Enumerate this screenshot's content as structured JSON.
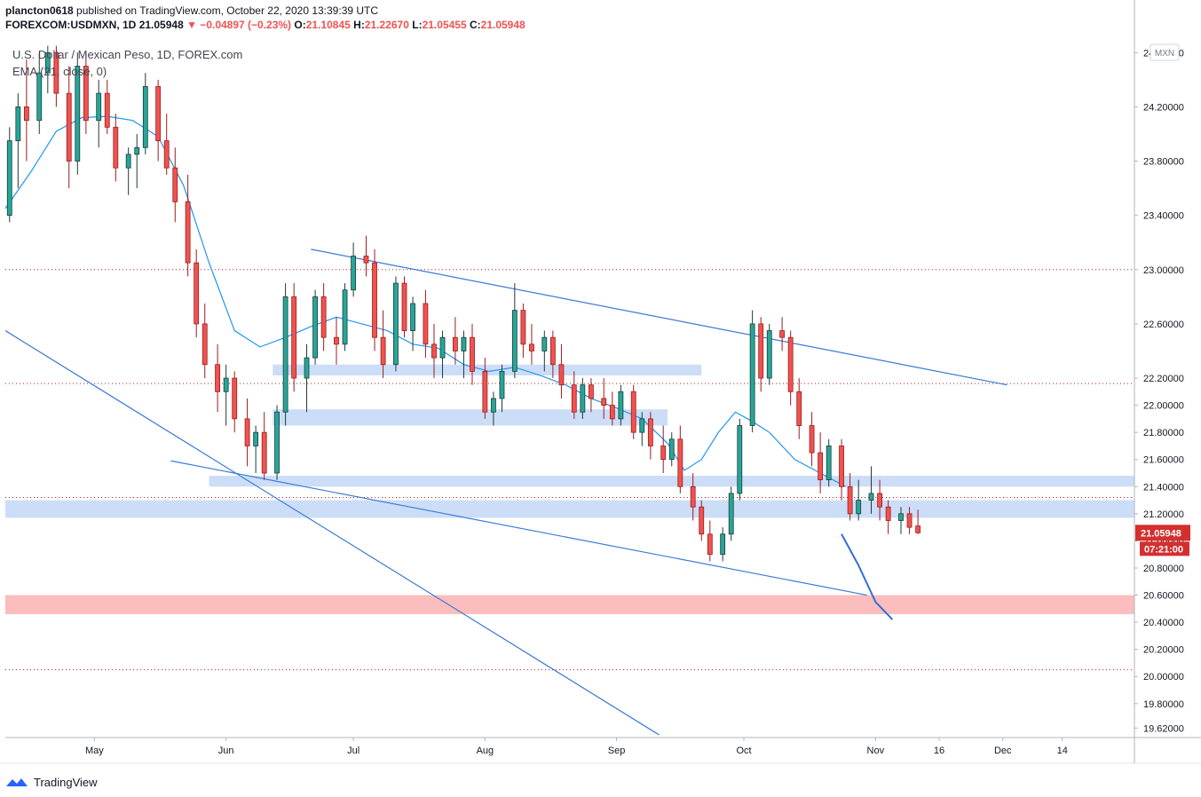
{
  "header": {
    "publisher": "plancton0618",
    "published_text": "published on TradingView.com, October 22, 2020 13:39:39 UTC",
    "symbol": "FOREXCOM:USDMXN, 1D",
    "last": "21.05948",
    "change": "▼ −0.04897 (−0.23%)",
    "o_label": "O:",
    "o": "21.10845",
    "h_label": "H:",
    "h": "21.22670",
    "l_label": "L:",
    "l": "21.05455",
    "c_label": "C:",
    "c": "21.05948"
  },
  "legend": {
    "title": "U.S. Dollar / Mexican Peso, 1D, FOREX.com",
    "indicator": "EMA (21, close, 0)"
  },
  "currency_badge": "MXN",
  "price_tag": {
    "price": "21.05948",
    "countdown": "07:21:00"
  },
  "footer": {
    "brand": "TradingView"
  },
  "colors": {
    "up": "#26a69a",
    "down": "#ef5350",
    "body_up": "#1f3b34",
    "body_down": "#9c1c1c",
    "ema": "#2196f3",
    "trendline": "#3a7bd5",
    "zone_blue": "#c6d9f7",
    "zone_red": "#fbb6b6",
    "grid_dotted": "#b22222",
    "axis_text": "#131722",
    "tag": "#d32f2f"
  },
  "chart_data": {
    "type": "candlestick",
    "title": "U.S. Dollar / Mexican Peso, 1D, FOREX.com",
    "xlabel": "",
    "ylabel": "",
    "y_ticks": [
      "19.62000",
      "19.80000",
      "20.00000",
      "20.20000",
      "20.40000",
      "20.60000",
      "20.80000",
      "21.00000",
      "21.20000",
      "21.40000",
      "21.60000",
      "21.80000",
      "22.00000",
      "22.20000",
      "22.60000",
      "23.00000",
      "23.40000",
      "23.80000",
      "24.20000",
      "24.60000"
    ],
    "y_tick_values": [
      19.62,
      19.8,
      20.0,
      20.2,
      20.4,
      20.6,
      20.8,
      21.0,
      21.2,
      21.4,
      21.6,
      21.8,
      22.0,
      22.2,
      22.6,
      23.0,
      23.4,
      23.8,
      24.2,
      24.6
    ],
    "ylim": [
      19.55,
      24.7
    ],
    "x_ticks": [
      {
        "label": "May",
        "day": 21
      },
      {
        "label": "Jun",
        "day": 52
      },
      {
        "label": "Jul",
        "day": 82
      },
      {
        "label": "Aug",
        "day": 113
      },
      {
        "label": "Sep",
        "day": 144
      },
      {
        "label": "Oct",
        "day": 174
      },
      {
        "label": "Nov",
        "day": 205
      },
      {
        "label": "16",
        "day": 220
      },
      {
        "label": "Dec",
        "day": 235
      },
      {
        "label": "14",
        "day": 249
      }
    ],
    "xlim": [
      0,
      266
    ],
    "reference_levels": [
      23.0,
      22.16,
      21.32,
      20.05
    ],
    "zones": [
      {
        "from_day": 63,
        "to_day": 164,
        "low": 22.22,
        "high": 22.3,
        "color": "blue"
      },
      {
        "from_day": 63,
        "to_day": 156,
        "low": 21.85,
        "high": 21.97,
        "color": "blue"
      },
      {
        "from_day": 48,
        "to_day": 266,
        "low": 21.4,
        "high": 21.48,
        "color": "blue"
      },
      {
        "from_day": 0,
        "to_day": 266,
        "low": 21.17,
        "high": 21.3,
        "color": "blue"
      },
      {
        "from_day": 0,
        "to_day": 266,
        "low": 20.46,
        "high": 20.6,
        "color": "red"
      }
    ],
    "trendlines": [
      {
        "from": [
          72,
          23.15
        ],
        "to": [
          236,
          22.15
        ]
      },
      {
        "from": [
          39,
          21.59
        ],
        "to": [
          203,
          20.6
        ]
      },
      {
        "from": [
          0,
          22.55
        ],
        "to": [
          154,
          19.57
        ]
      }
    ],
    "projection": [
      [
        197,
        21.05
      ],
      [
        201,
        20.82
      ],
      [
        205,
        20.55
      ],
      [
        209,
        20.42
      ]
    ],
    "ema_21": [
      [
        0,
        23.45
      ],
      [
        6,
        23.72
      ],
      [
        12,
        24.02
      ],
      [
        18,
        24.12
      ],
      [
        24,
        24.13
      ],
      [
        30,
        24.1
      ],
      [
        36,
        23.98
      ],
      [
        42,
        23.62
      ],
      [
        48,
        23.05
      ],
      [
        54,
        22.55
      ],
      [
        60,
        22.43
      ],
      [
        66,
        22.5
      ],
      [
        72,
        22.58
      ],
      [
        78,
        22.65
      ],
      [
        84,
        22.6
      ],
      [
        90,
        22.55
      ],
      [
        96,
        22.45
      ],
      [
        102,
        22.42
      ],
      [
        108,
        22.3
      ],
      [
        114,
        22.25
      ],
      [
        120,
        22.28
      ],
      [
        126,
        22.22
      ],
      [
        132,
        22.15
      ],
      [
        138,
        22.05
      ],
      [
        144,
        21.98
      ],
      [
        150,
        21.9
      ],
      [
        156,
        21.72
      ],
      [
        160,
        21.52
      ],
      [
        164,
        21.6
      ],
      [
        168,
        21.8
      ],
      [
        172,
        21.95
      ],
      [
        176,
        21.88
      ],
      [
        180,
        21.8
      ],
      [
        186,
        21.6
      ],
      [
        192,
        21.5
      ],
      [
        198,
        21.4
      ]
    ],
    "candles": [
      {
        "day": 1,
        "o": 23.4,
        "h": 24.05,
        "l": 23.35,
        "c": 23.95
      },
      {
        "day": 3,
        "o": 23.95,
        "h": 24.3,
        "l": 23.6,
        "c": 24.2
      },
      {
        "day": 5,
        "o": 24.2,
        "h": 24.55,
        "l": 23.8,
        "c": 24.1
      },
      {
        "day": 8,
        "o": 24.1,
        "h": 24.6,
        "l": 24.0,
        "c": 24.45
      },
      {
        "day": 10,
        "o": 24.45,
        "h": 24.65,
        "l": 24.3,
        "c": 24.6
      },
      {
        "day": 12,
        "o": 24.6,
        "h": 24.65,
        "l": 24.2,
        "c": 24.3
      },
      {
        "day": 15,
        "o": 24.3,
        "h": 24.5,
        "l": 23.6,
        "c": 23.8
      },
      {
        "day": 17,
        "o": 23.8,
        "h": 24.6,
        "l": 23.7,
        "c": 24.5
      },
      {
        "day": 19,
        "o": 24.5,
        "h": 24.6,
        "l": 24.0,
        "c": 24.1
      },
      {
        "day": 22,
        "o": 24.1,
        "h": 24.4,
        "l": 23.9,
        "c": 24.3
      },
      {
        "day": 24,
        "o": 24.3,
        "h": 24.4,
        "l": 24.0,
        "c": 24.05
      },
      {
        "day": 26,
        "o": 24.05,
        "h": 24.15,
        "l": 23.65,
        "c": 23.75
      },
      {
        "day": 29,
        "o": 23.75,
        "h": 23.9,
        "l": 23.55,
        "c": 23.85
      },
      {
        "day": 31,
        "o": 23.85,
        "h": 24.0,
        "l": 23.6,
        "c": 23.9
      },
      {
        "day": 33,
        "o": 23.9,
        "h": 24.45,
        "l": 23.85,
        "c": 24.35
      },
      {
        "day": 36,
        "o": 24.35,
        "h": 24.4,
        "l": 23.8,
        "c": 23.95
      },
      {
        "day": 38,
        "o": 23.95,
        "h": 24.15,
        "l": 23.7,
        "c": 23.75
      },
      {
        "day": 40,
        "o": 23.75,
        "h": 23.9,
        "l": 23.35,
        "c": 23.5
      },
      {
        "day": 43,
        "o": 23.5,
        "h": 23.7,
        "l": 22.95,
        "c": 23.05
      },
      {
        "day": 45,
        "o": 23.05,
        "h": 23.15,
        "l": 22.5,
        "c": 22.6
      },
      {
        "day": 47,
        "o": 22.6,
        "h": 22.75,
        "l": 22.2,
        "c": 22.3
      },
      {
        "day": 50,
        "o": 22.3,
        "h": 22.45,
        "l": 21.95,
        "c": 22.1
      },
      {
        "day": 52,
        "o": 22.1,
        "h": 22.3,
        "l": 21.85,
        "c": 22.2
      },
      {
        "day": 54,
        "o": 22.2,
        "h": 22.25,
        "l": 21.8,
        "c": 21.9
      },
      {
        "day": 57,
        "o": 21.9,
        "h": 22.05,
        "l": 21.55,
        "c": 21.7
      },
      {
        "day": 59,
        "o": 21.7,
        "h": 21.85,
        "l": 21.5,
        "c": 21.8
      },
      {
        "day": 61,
        "o": 21.8,
        "h": 21.95,
        "l": 21.45,
        "c": 21.5
      },
      {
        "day": 64,
        "o": 21.5,
        "h": 22.0,
        "l": 21.45,
        "c": 21.95
      },
      {
        "day": 66,
        "o": 21.95,
        "h": 22.9,
        "l": 21.85,
        "c": 22.8
      },
      {
        "day": 68,
        "o": 22.8,
        "h": 22.9,
        "l": 22.1,
        "c": 22.2
      },
      {
        "day": 71,
        "o": 22.2,
        "h": 22.45,
        "l": 21.95,
        "c": 22.35
      },
      {
        "day": 73,
        "o": 22.35,
        "h": 22.85,
        "l": 22.3,
        "c": 22.8
      },
      {
        "day": 75,
        "o": 22.8,
        "h": 22.9,
        "l": 22.4,
        "c": 22.5
      },
      {
        "day": 78,
        "o": 22.5,
        "h": 22.65,
        "l": 22.3,
        "c": 22.45
      },
      {
        "day": 80,
        "o": 22.45,
        "h": 22.9,
        "l": 22.4,
        "c": 22.85
      },
      {
        "day": 82,
        "o": 22.85,
        "h": 23.2,
        "l": 22.8,
        "c": 23.1
      },
      {
        "day": 85,
        "o": 23.1,
        "h": 23.25,
        "l": 22.95,
        "c": 23.05
      },
      {
        "day": 87,
        "o": 23.05,
        "h": 23.15,
        "l": 22.4,
        "c": 22.5
      },
      {
        "day": 89,
        "o": 22.5,
        "h": 22.7,
        "l": 22.2,
        "c": 22.3
      },
      {
        "day": 92,
        "o": 22.3,
        "h": 22.95,
        "l": 22.25,
        "c": 22.9
      },
      {
        "day": 94,
        "o": 22.9,
        "h": 22.95,
        "l": 22.5,
        "c": 22.55
      },
      {
        "day": 96,
        "o": 22.55,
        "h": 22.8,
        "l": 22.4,
        "c": 22.75
      },
      {
        "day": 99,
        "o": 22.75,
        "h": 22.85,
        "l": 22.35,
        "c": 22.45
      },
      {
        "day": 101,
        "o": 22.45,
        "h": 22.6,
        "l": 22.2,
        "c": 22.35
      },
      {
        "day": 103,
        "o": 22.35,
        "h": 22.55,
        "l": 22.2,
        "c": 22.5
      },
      {
        "day": 106,
        "o": 22.5,
        "h": 22.65,
        "l": 22.3,
        "c": 22.4
      },
      {
        "day": 108,
        "o": 22.4,
        "h": 22.55,
        "l": 22.2,
        "c": 22.5
      },
      {
        "day": 110,
        "o": 22.5,
        "h": 22.6,
        "l": 22.15,
        "c": 22.25
      },
      {
        "day": 113,
        "o": 22.25,
        "h": 22.35,
        "l": 21.9,
        "c": 21.95
      },
      {
        "day": 115,
        "o": 21.95,
        "h": 22.1,
        "l": 21.85,
        "c": 22.05
      },
      {
        "day": 117,
        "o": 22.05,
        "h": 22.3,
        "l": 21.95,
        "c": 22.25
      },
      {
        "day": 120,
        "o": 22.25,
        "h": 22.9,
        "l": 22.2,
        "c": 22.7
      },
      {
        "day": 122,
        "o": 22.7,
        "h": 22.75,
        "l": 22.35,
        "c": 22.45
      },
      {
        "day": 124,
        "o": 22.45,
        "h": 22.6,
        "l": 22.3,
        "c": 22.4
      },
      {
        "day": 127,
        "o": 22.4,
        "h": 22.55,
        "l": 22.25,
        "c": 22.5
      },
      {
        "day": 129,
        "o": 22.5,
        "h": 22.55,
        "l": 22.2,
        "c": 22.3
      },
      {
        "day": 131,
        "o": 22.3,
        "h": 22.45,
        "l": 22.05,
        "c": 22.15
      },
      {
        "day": 134,
        "o": 22.15,
        "h": 22.25,
        "l": 21.9,
        "c": 21.95
      },
      {
        "day": 136,
        "o": 21.95,
        "h": 22.2,
        "l": 21.9,
        "c": 22.15
      },
      {
        "day": 138,
        "o": 22.15,
        "h": 22.2,
        "l": 21.95,
        "c": 22.05
      },
      {
        "day": 141,
        "o": 22.05,
        "h": 22.2,
        "l": 21.9,
        "c": 22.0
      },
      {
        "day": 143,
        "o": 22.0,
        "h": 22.1,
        "l": 21.85,
        "c": 21.9
      },
      {
        "day": 145,
        "o": 21.9,
        "h": 22.15,
        "l": 21.85,
        "c": 22.1
      },
      {
        "day": 148,
        "o": 22.1,
        "h": 22.15,
        "l": 21.75,
        "c": 21.8
      },
      {
        "day": 150,
        "o": 21.8,
        "h": 21.95,
        "l": 21.7,
        "c": 21.9
      },
      {
        "day": 152,
        "o": 21.9,
        "h": 21.95,
        "l": 21.6,
        "c": 21.7
      },
      {
        "day": 155,
        "o": 21.7,
        "h": 21.85,
        "l": 21.5,
        "c": 21.6
      },
      {
        "day": 157,
        "o": 21.6,
        "h": 21.8,
        "l": 21.55,
        "c": 21.75
      },
      {
        "day": 159,
        "o": 21.75,
        "h": 21.85,
        "l": 21.35,
        "c": 21.4
      },
      {
        "day": 162,
        "o": 21.4,
        "h": 21.5,
        "l": 21.15,
        "c": 21.25
      },
      {
        "day": 164,
        "o": 21.25,
        "h": 21.3,
        "l": 21.0,
        "c": 21.05
      },
      {
        "day": 166,
        "o": 21.05,
        "h": 21.15,
        "l": 20.85,
        "c": 20.9
      },
      {
        "day": 169,
        "o": 20.9,
        "h": 21.1,
        "l": 20.85,
        "c": 21.05
      },
      {
        "day": 171,
        "o": 21.05,
        "h": 21.4,
        "l": 21.0,
        "c": 21.35
      },
      {
        "day": 173,
        "o": 21.35,
        "h": 21.9,
        "l": 21.3,
        "c": 21.85
      },
      {
        "day": 176,
        "o": 21.85,
        "h": 22.7,
        "l": 21.8,
        "c": 22.6
      },
      {
        "day": 178,
        "o": 22.6,
        "h": 22.65,
        "l": 22.1,
        "c": 22.2
      },
      {
        "day": 180,
        "o": 22.2,
        "h": 22.6,
        "l": 22.15,
        "c": 22.55
      },
      {
        "day": 183,
        "o": 22.55,
        "h": 22.65,
        "l": 22.4,
        "c": 22.5
      },
      {
        "day": 185,
        "o": 22.5,
        "h": 22.55,
        "l": 22.0,
        "c": 22.1
      },
      {
        "day": 187,
        "o": 22.1,
        "h": 22.2,
        "l": 21.75,
        "c": 21.85
      },
      {
        "day": 190,
        "o": 21.85,
        "h": 21.95,
        "l": 21.55,
        "c": 21.65
      },
      {
        "day": 192,
        "o": 21.65,
        "h": 21.8,
        "l": 21.35,
        "c": 21.45
      },
      {
        "day": 194,
        "o": 21.45,
        "h": 21.75,
        "l": 21.4,
        "c": 21.7
      },
      {
        "day": 197,
        "o": 21.7,
        "h": 21.75,
        "l": 21.3,
        "c": 21.4
      },
      {
        "day": 199,
        "o": 21.4,
        "h": 21.5,
        "l": 21.15,
        "c": 21.2
      },
      {
        "day": 201,
        "o": 21.2,
        "h": 21.45,
        "l": 21.15,
        "c": 21.3
      },
      {
        "day": 204,
        "o": 21.3,
        "h": 21.55,
        "l": 21.2,
        "c": 21.35
      },
      {
        "day": 206,
        "o": 21.35,
        "h": 21.45,
        "l": 21.15,
        "c": 21.25
      },
      {
        "day": 208,
        "o": 21.25,
        "h": 21.3,
        "l": 21.05,
        "c": 21.15
      },
      {
        "day": 211,
        "o": 21.15,
        "h": 21.25,
        "l": 21.05,
        "c": 21.2
      },
      {
        "day": 213,
        "o": 21.2,
        "h": 21.25,
        "l": 21.05,
        "c": 21.1
      },
      {
        "day": 215,
        "o": 21.11,
        "h": 21.23,
        "l": 21.05,
        "c": 21.06
      }
    ]
  }
}
